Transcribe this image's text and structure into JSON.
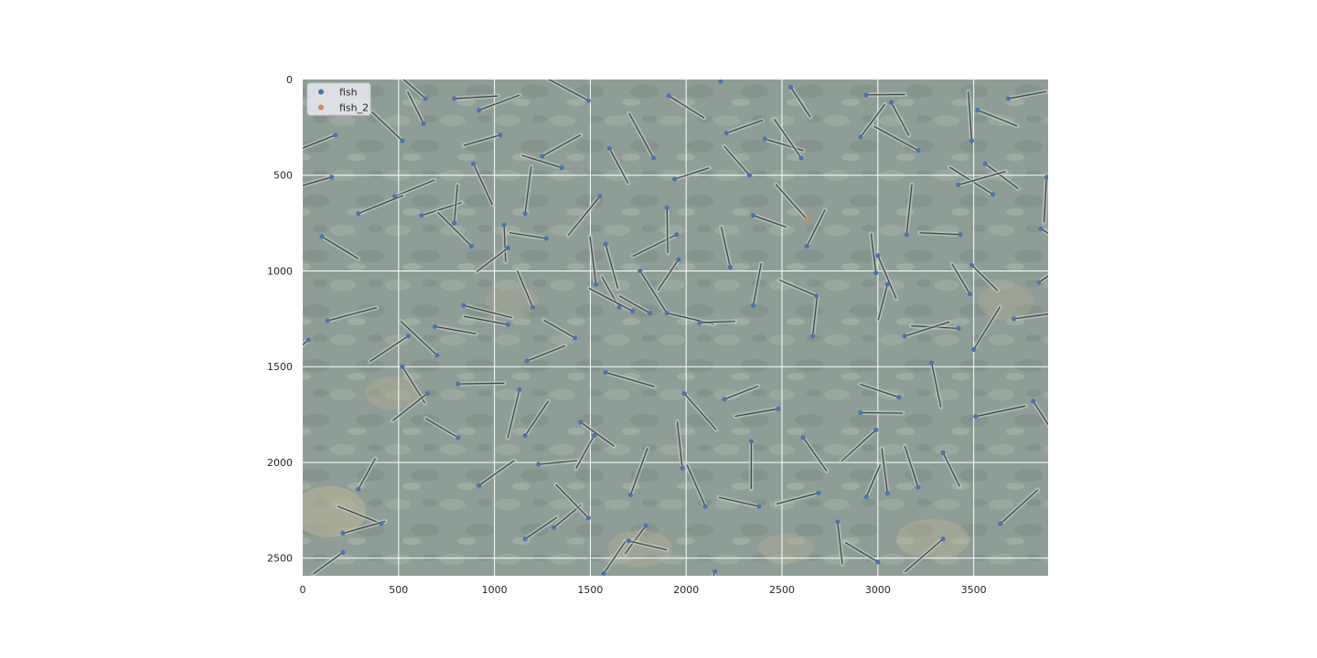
{
  "chart_data": {
    "type": "scatter",
    "title": "",
    "xlabel": "",
    "ylabel": "",
    "xlim": [
      0,
      3888
    ],
    "ylim": [
      2592,
      0
    ],
    "y_inverted": true,
    "grid": true,
    "background": "underwater photo of fish (annotated keypoint image)",
    "xticks": [
      "0",
      "500",
      "1000",
      "1500",
      "2000",
      "2500",
      "3000",
      "3500"
    ],
    "yticks": [
      "0",
      "500",
      "1000",
      "1500",
      "2000",
      "2500"
    ],
    "xtick_values": [
      0,
      500,
      1000,
      1500,
      2000,
      2500,
      3000,
      3500
    ],
    "ytick_values": [
      0,
      500,
      1000,
      1500,
      2000,
      2500
    ],
    "legend_placement": "top-left",
    "series": [
      {
        "name": "fish",
        "color": "#4c72b0",
        "points": [
          [
            790,
            100
          ],
          [
            640,
            100
          ],
          [
            920,
            160
          ],
          [
            1490,
            110
          ],
          [
            1910,
            85
          ],
          [
            2180,
            10
          ],
          [
            2545,
            40
          ],
          [
            2940,
            80
          ],
          [
            3070,
            120
          ],
          [
            3520,
            160
          ],
          [
            630,
            230
          ],
          [
            170,
            290
          ],
          [
            520,
            320
          ],
          [
            1030,
            290
          ],
          [
            1250,
            400
          ],
          [
            1600,
            360
          ],
          [
            1830,
            410
          ],
          [
            2210,
            280
          ],
          [
            2410,
            310
          ],
          [
            2600,
            410
          ],
          [
            2910,
            300
          ],
          [
            3210,
            370
          ],
          [
            3490,
            320
          ],
          [
            3680,
            100
          ],
          [
            3560,
            440
          ],
          [
            3880,
            510
          ],
          [
            2330,
            500
          ],
          [
            1940,
            520
          ],
          [
            1350,
            460
          ],
          [
            890,
            440
          ],
          [
            150,
            510
          ],
          [
            480,
            610
          ],
          [
            290,
            700
          ],
          [
            620,
            710
          ],
          [
            790,
            750
          ],
          [
            1050,
            760
          ],
          [
            1160,
            700
          ],
          [
            1550,
            610
          ],
          [
            1950,
            810
          ],
          [
            1900,
            670
          ],
          [
            2350,
            710
          ],
          [
            2630,
            870
          ],
          [
            2230,
            980
          ],
          [
            3000,
            920
          ],
          [
            3150,
            810
          ],
          [
            3430,
            810
          ],
          [
            3850,
            780
          ],
          [
            3600,
            600
          ],
          [
            3420,
            550
          ],
          [
            100,
            820
          ],
          [
            880,
            870
          ],
          [
            1070,
            880
          ],
          [
            1270,
            830
          ],
          [
            1580,
            860
          ],
          [
            1760,
            1000
          ],
          [
            1530,
            1070
          ],
          [
            1650,
            1190
          ],
          [
            1810,
            1220
          ],
          [
            1900,
            1220
          ],
          [
            1960,
            940
          ],
          [
            2070,
            1270
          ],
          [
            2350,
            1180
          ],
          [
            2680,
            1130
          ],
          [
            2990,
            1010
          ],
          [
            3050,
            1070
          ],
          [
            3480,
            1120
          ],
          [
            3490,
            970
          ],
          [
            3840,
            1060
          ],
          [
            3710,
            1250
          ],
          [
            3420,
            1300
          ],
          [
            3140,
            1340
          ],
          [
            3500,
            1410
          ],
          [
            3280,
            1480
          ],
          [
            2660,
            1340
          ],
          [
            1720,
            1210
          ],
          [
            1420,
            1350
          ],
          [
            1200,
            1190
          ],
          [
            1070,
            1280
          ],
          [
            1170,
            1470
          ],
          [
            840,
            1180
          ],
          [
            690,
            1290
          ],
          [
            700,
            1440
          ],
          [
            520,
            1500
          ],
          [
            550,
            1340
          ],
          [
            130,
            1260
          ],
          [
            30,
            1360
          ],
          [
            810,
            1590
          ],
          [
            1130,
            1620
          ],
          [
            1580,
            1530
          ],
          [
            1990,
            1640
          ],
          [
            2200,
            1670
          ],
          [
            2480,
            1720
          ],
          [
            2610,
            1870
          ],
          [
            2340,
            1890
          ],
          [
            2910,
            1740
          ],
          [
            2990,
            1830
          ],
          [
            3110,
            1660
          ],
          [
            3510,
            1760
          ],
          [
            3810,
            1680
          ],
          [
            3340,
            1950
          ],
          [
            3210,
            2130
          ],
          [
            2940,
            2180
          ],
          [
            2690,
            2160
          ],
          [
            2380,
            2230
          ],
          [
            2100,
            2230
          ],
          [
            1980,
            2030
          ],
          [
            1710,
            2170
          ],
          [
            1450,
            1790
          ],
          [
            1520,
            1860
          ],
          [
            1160,
            1860
          ],
          [
            650,
            1640
          ],
          [
            810,
            1870
          ],
          [
            1230,
            2010
          ],
          [
            920,
            2120
          ],
          [
            290,
            2140
          ],
          [
            410,
            2320
          ],
          [
            210,
            2370
          ],
          [
            210,
            2470
          ],
          [
            1160,
            2400
          ],
          [
            1310,
            2340
          ],
          [
            1490,
            2290
          ],
          [
            1790,
            2330
          ],
          [
            1700,
            2410
          ],
          [
            1570,
            2580
          ],
          [
            2790,
            2310
          ],
          [
            3050,
            2160
          ],
          [
            3340,
            2400
          ],
          [
            3640,
            2320
          ],
          [
            2150,
            2570
          ],
          [
            3000,
            2520
          ]
        ]
      },
      {
        "name": "fish_2",
        "color": "#dd8452",
        "points": [
          [
            2630,
            730
          ]
        ]
      }
    ]
  }
}
